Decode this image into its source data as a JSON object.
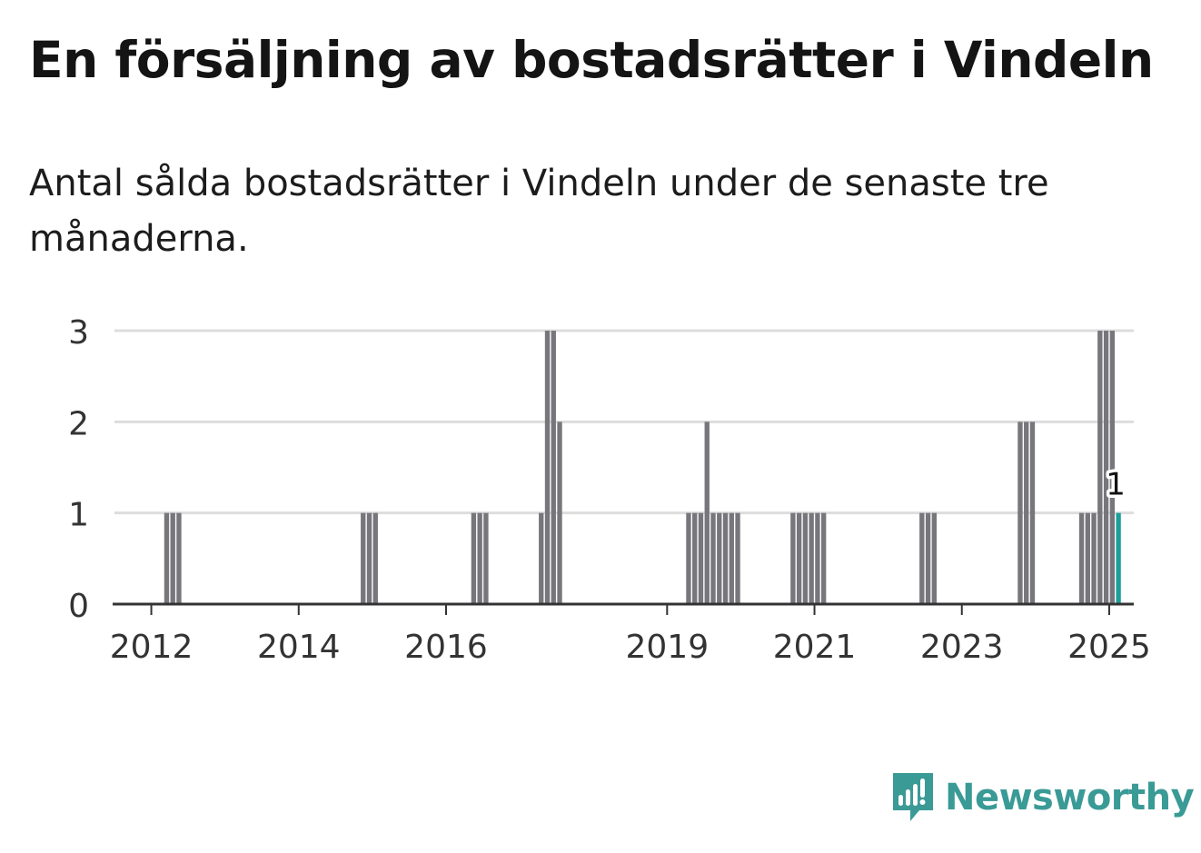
{
  "header": {
    "title": "En försäljning av bostadsrätter i Vindeln",
    "subtitle": "Antal sålda bostadsrätter i Vindeln under de senaste tre månaderna."
  },
  "brand": {
    "name": "Newsworthy",
    "icon": "newsworthy-logo-icon",
    "color": "#3a9a96"
  },
  "colors": {
    "bar": "#76767c",
    "highlight": "#1d9e98",
    "grid": "#dddddd",
    "axis": "#333333"
  },
  "chart_data": {
    "type": "bar",
    "x_type": "date",
    "bar_interval": "month",
    "title": "En försäljning av bostadsrätter i Vindeln",
    "subtitle": "Antal sålda bostadsrätter i Vindeln under de senaste tre månaderna.",
    "xlabel": "",
    "ylabel": "",
    "ylim": [
      0,
      3
    ],
    "yticks": [
      "0",
      "1",
      "2",
      "3"
    ],
    "xticks": [
      {
        "label": "2012",
        "date": "2012-01"
      },
      {
        "label": "2014",
        "date": "2014-01"
      },
      {
        "label": "2016",
        "date": "2016-01"
      },
      {
        "label": "2019",
        "date": "2019-01"
      },
      {
        "label": "2021",
        "date": "2021-01"
      },
      {
        "label": "2023",
        "date": "2023-01"
      },
      {
        "label": "2025",
        "date": "2025-01"
      }
    ],
    "grid": true,
    "x_range": [
      "2011-07",
      "2025-05"
    ],
    "series": [
      {
        "points": [
          {
            "x": "2012-03",
            "y": 1
          },
          {
            "x": "2012-04",
            "y": 1
          },
          {
            "x": "2012-05",
            "y": 1
          },
          {
            "x": "2014-11",
            "y": 1
          },
          {
            "x": "2014-12",
            "y": 1
          },
          {
            "x": "2015-01",
            "y": 1
          },
          {
            "x": "2016-05",
            "y": 1
          },
          {
            "x": "2016-06",
            "y": 1
          },
          {
            "x": "2016-07",
            "y": 1
          },
          {
            "x": "2017-04",
            "y": 1
          },
          {
            "x": "2017-05",
            "y": 3
          },
          {
            "x": "2017-06",
            "y": 3
          },
          {
            "x": "2017-07",
            "y": 2
          },
          {
            "x": "2019-04",
            "y": 1
          },
          {
            "x": "2019-05",
            "y": 1
          },
          {
            "x": "2019-06",
            "y": 1
          },
          {
            "x": "2019-07",
            "y": 2
          },
          {
            "x": "2019-08",
            "y": 1
          },
          {
            "x": "2019-09",
            "y": 1
          },
          {
            "x": "2019-10",
            "y": 1
          },
          {
            "x": "2019-11",
            "y": 1
          },
          {
            "x": "2019-12",
            "y": 1
          },
          {
            "x": "2020-09",
            "y": 1
          },
          {
            "x": "2020-10",
            "y": 1
          },
          {
            "x": "2020-11",
            "y": 1
          },
          {
            "x": "2020-12",
            "y": 1
          },
          {
            "x": "2021-01",
            "y": 1
          },
          {
            "x": "2021-02",
            "y": 1
          },
          {
            "x": "2022-06",
            "y": 1
          },
          {
            "x": "2022-07",
            "y": 1
          },
          {
            "x": "2022-08",
            "y": 1
          },
          {
            "x": "2023-10",
            "y": 2
          },
          {
            "x": "2023-11",
            "y": 2
          },
          {
            "x": "2023-12",
            "y": 2
          },
          {
            "x": "2024-08",
            "y": 1
          },
          {
            "x": "2024-09",
            "y": 1
          },
          {
            "x": "2024-10",
            "y": 1
          },
          {
            "x": "2024-11",
            "y": 3
          },
          {
            "x": "2024-12",
            "y": 3
          },
          {
            "x": "2025-01",
            "y": 3
          }
        ]
      }
    ],
    "highlight": {
      "x": "2025-02",
      "y": 1,
      "label": "1"
    }
  }
}
